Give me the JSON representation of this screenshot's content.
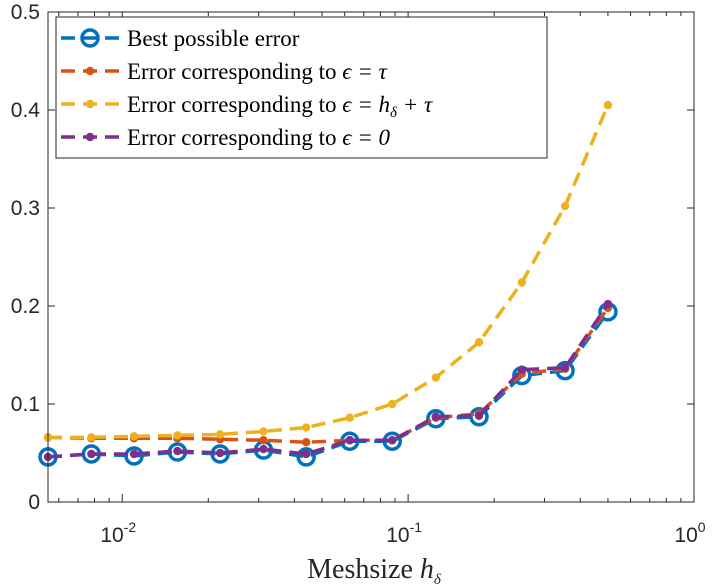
{
  "chart_data": {
    "type": "line",
    "xscale": "log",
    "xlim": [
      0.0055,
      1.0
    ],
    "ylim": [
      0,
      0.5
    ],
    "xlabel": "Meshsize",
    "xlabel_math": "h",
    "xlabel_math_sub": "δ",
    "ylabel": "",
    "title": "",
    "x_ticks": [
      {
        "value": 0.01,
        "base": "10",
        "exp": "-2"
      },
      {
        "value": 0.1,
        "base": "10",
        "exp": "-1"
      },
      {
        "value": 1.0,
        "base": "10",
        "exp": "0"
      }
    ],
    "y_ticks": [
      {
        "value": 0,
        "label": "0"
      },
      {
        "value": 0.1,
        "label": "0.1"
      },
      {
        "value": 0.2,
        "label": "0.2"
      },
      {
        "value": 0.3,
        "label": "0.3"
      },
      {
        "value": 0.4,
        "label": "0.4"
      },
      {
        "value": 0.5,
        "label": "0.5"
      }
    ],
    "x": [
      0.0055,
      0.0078,
      0.011,
      0.0156,
      0.022,
      0.0312,
      0.044,
      0.0625,
      0.088,
      0.125,
      0.177,
      0.25,
      0.354,
      0.5
    ],
    "series": [
      {
        "name": "Best possible error",
        "legend_prefix": "Best possible error",
        "legend_math": "",
        "color": "#0072BD",
        "marker": "open-circle",
        "values": [
          0.046,
          0.049,
          0.047,
          0.051,
          0.049,
          0.053,
          0.046,
          0.062,
          0.062,
          0.085,
          0.087,
          0.129,
          0.134,
          0.194
        ]
      },
      {
        "name": "Error corresponding to ϵ = τ",
        "legend_prefix": "Error corresponding to ",
        "legend_math": "ϵ = τ",
        "color": "#D95319",
        "marker": "dot",
        "values": [
          0.066,
          0.065,
          0.065,
          0.065,
          0.064,
          0.063,
          0.061,
          0.063,
          0.063,
          0.086,
          0.09,
          0.131,
          0.136,
          0.198
        ]
      },
      {
        "name": "Error corresponding to ϵ = hδ + τ",
        "legend_prefix": "Error corresponding to ",
        "legend_math": "ϵ = h",
        "legend_math_sub": "δ",
        "legend_math_tail": " + τ",
        "color": "#EDB120",
        "marker": "dot",
        "values": [
          0.066,
          0.066,
          0.067,
          0.068,
          0.069,
          0.072,
          0.076,
          0.086,
          0.1,
          0.127,
          0.163,
          0.224,
          0.302,
          0.405
        ]
      },
      {
        "name": "Error corresponding to ϵ = 0",
        "legend_prefix": "Error corresponding to ",
        "legend_math": "ϵ = 0",
        "color": "#7E2F8E",
        "marker": "dot",
        "values": [
          0.046,
          0.049,
          0.049,
          0.052,
          0.05,
          0.054,
          0.049,
          0.063,
          0.063,
          0.087,
          0.088,
          0.135,
          0.137,
          0.202
        ]
      }
    ],
    "legend_position": "top-left",
    "grid": false
  }
}
